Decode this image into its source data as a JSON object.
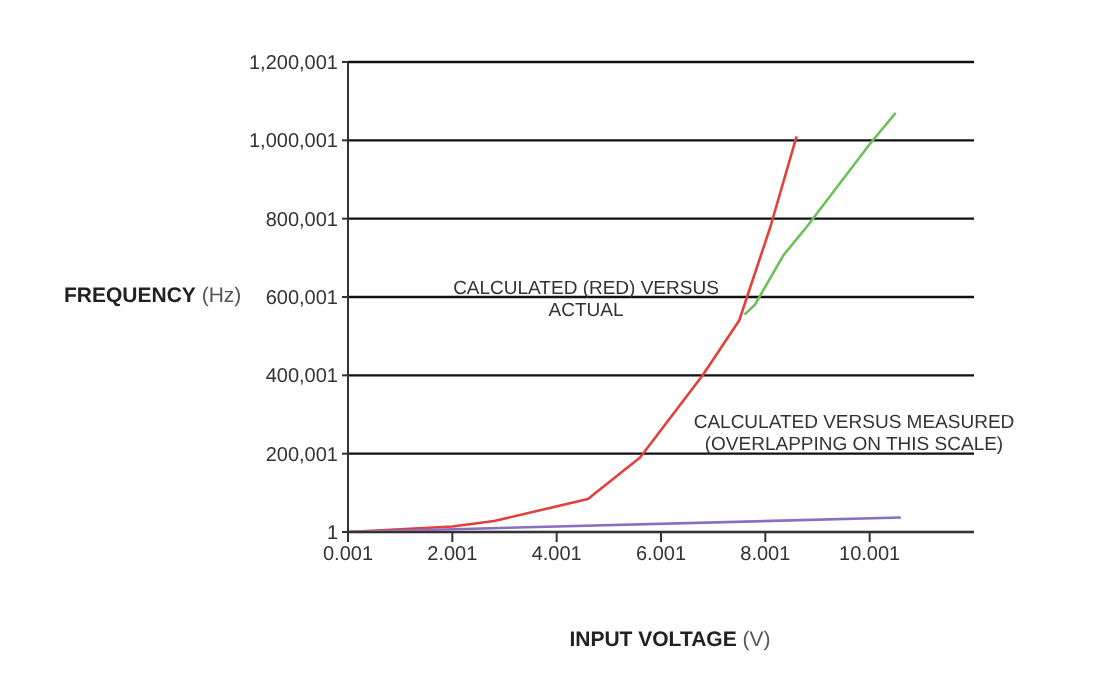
{
  "chart_data": {
    "type": "line",
    "xlabel": "INPUT VOLTAGE (V)",
    "ylabel": "FREQUENCY (Hz)",
    "annotations": [
      "CALCULATED (RED) VERSUS\nACTUAL",
      "CALCULATED VERSUS MEASURED\n(OVERLAPPING ON THIS SCALE)"
    ],
    "series": [
      {
        "color": "#6cc05a",
        "x": [
          7.6,
          7.8,
          8.35,
          8.8,
          10,
          10.5
        ],
        "values": [
          555000,
          580000,
          707000,
          780000,
          990000,
          1070000
        ]
      },
      {
        "color": "#e0413c",
        "x": [
          0.001,
          2,
          2.8,
          4.6,
          5.6,
          6.8,
          7.5,
          8.1,
          8.6
        ],
        "values": [
          1,
          14000,
          28000,
          84000,
          190000,
          400000,
          540000,
          780000,
          1010000
        ]
      },
      {
        "color": "#8a6fc0",
        "x": [
          0.001,
          10.6
        ],
        "values": [
          1,
          37000
        ]
      }
    ],
    "xlim": [
      0.001,
      12.001
    ],
    "xticks": [
      0.001,
      2.001,
      4.001,
      6.001,
      8.001,
      10.001
    ],
    "ylim": [
      1,
      1200001
    ],
    "yticks": [
      {
        "value": 1,
        "label": "1"
      },
      {
        "value": 200001,
        "label": "200,001"
      },
      {
        "value": 400001,
        "label": "400,001"
      },
      {
        "value": 600001,
        "label": "600,001"
      },
      {
        "value": 800001,
        "label": "800,001"
      },
      {
        "value": 1000001,
        "label": "1,000,001"
      },
      {
        "value": 1200001,
        "label": "1,200,001"
      }
    ],
    "grid": "y",
    "marker": "none",
    "line_style": "solid"
  }
}
